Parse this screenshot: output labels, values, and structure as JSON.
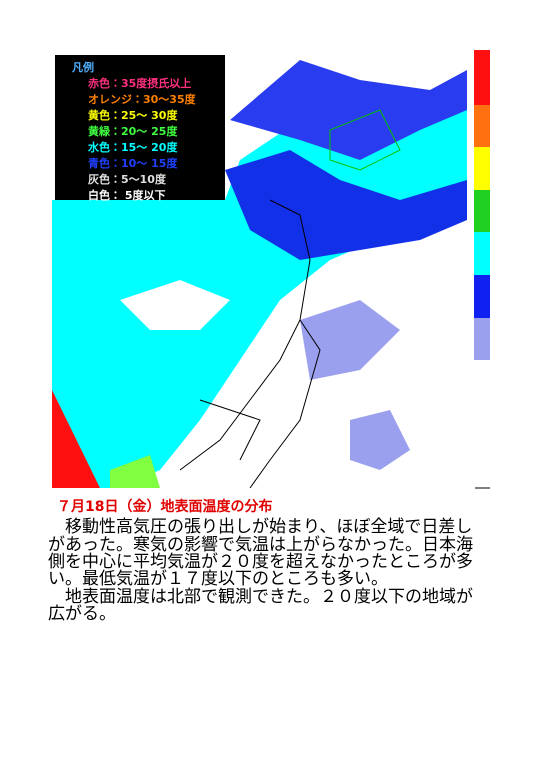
{
  "legend": {
    "title": "凡例",
    "items": [
      "赤色：35度摂氏以上",
      "オレンジ：30～35度",
      "黄色：25～ 30度",
      "黄緑：20～ 25度",
      "水色：15～ 20度",
      "青色：10～ 15度",
      "灰色：5～10度",
      "白色： 5度以下"
    ]
  },
  "article": {
    "title": "７月18日（金）地表面温度の分布",
    "paragraphs": [
      [
        "　移動性高気圧の張り出しが始まり、ほぼ全域で日差し",
        "があった。寒気の影響で気温は上がらなかった。日本海",
        "側を中心に平均気温が２０度を超えなかったところが多",
        "い。最低気温が１７度以下のところも多い。"
      ],
      [
        "　地表面温度は北部で観測できた。２０度以下の地域が",
        "広がる。"
      ]
    ]
  }
}
